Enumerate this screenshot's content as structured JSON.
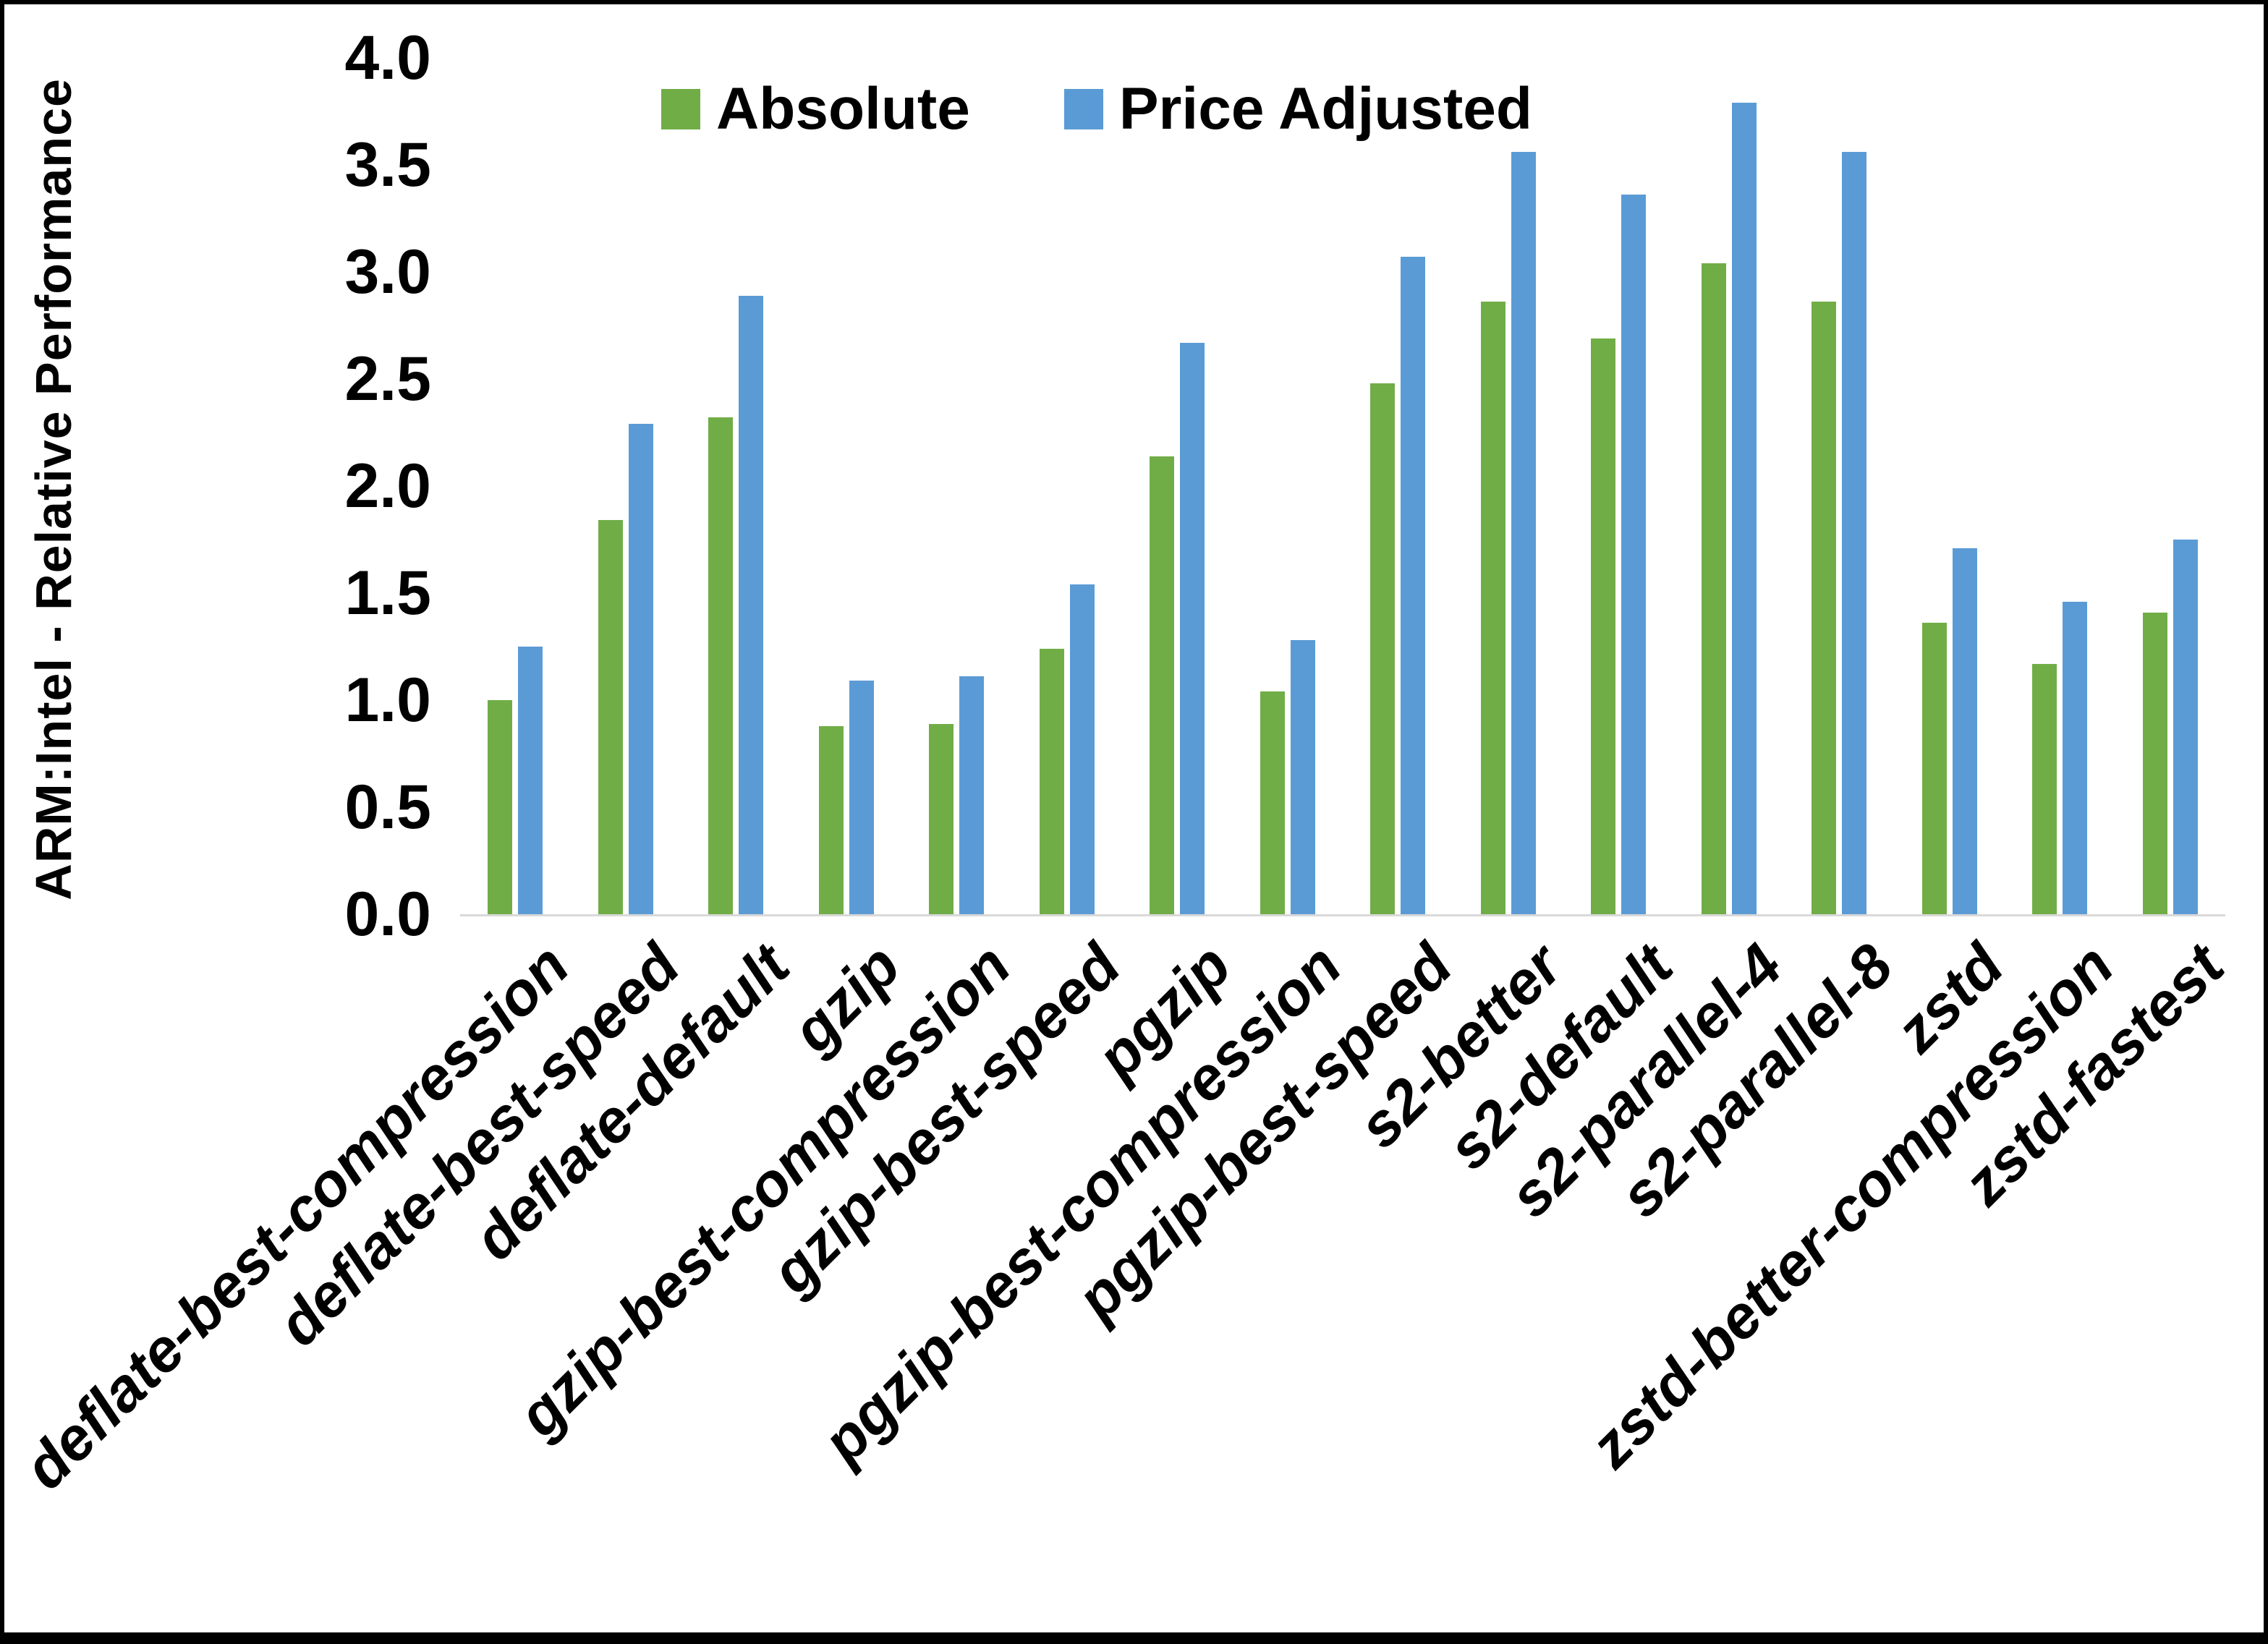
{
  "chart_data": {
    "type": "bar",
    "title": "",
    "xlabel": "",
    "ylabel": "ARM:Intel - Relative Performance",
    "ylim": [
      0.0,
      4.0
    ],
    "ytick_step": 0.5,
    "ytick_labels": [
      "0.0",
      "0.5",
      "1.0",
      "1.5",
      "2.0",
      "2.5",
      "3.0",
      "3.5",
      "4.0"
    ],
    "grid": false,
    "legend_position": "top-center",
    "categories": [
      "deflate-best-compression",
      "deflate-best-speed",
      "deflate-default",
      "gzip",
      "gzip-best-compression",
      "gzip-best-speed",
      "pgzip",
      "pgzip-best-compression",
      "pgzip-best-speed",
      "s2-better",
      "s2-default",
      "s2-parallel-4",
      "s2-parallel-8",
      "zstd",
      "zstd-better-compression",
      "zstd-fastest"
    ],
    "series": [
      {
        "name": "Absolute",
        "color": "#70AD47",
        "values": [
          1.0,
          1.84,
          2.32,
          0.88,
          0.89,
          1.24,
          2.14,
          1.04,
          2.48,
          2.86,
          2.69,
          3.04,
          2.86,
          1.36,
          1.17,
          1.41
        ]
      },
      {
        "name": "Price Adjusted",
        "color": "#5B9BD5",
        "values": [
          1.25,
          2.29,
          2.89,
          1.09,
          1.11,
          1.54,
          2.67,
          1.28,
          3.07,
          3.56,
          3.36,
          3.79,
          3.56,
          1.71,
          1.46,
          1.75
        ]
      }
    ]
  },
  "colors": {
    "absolute_green": "#70AD47",
    "price_adjusted_blue": "#5B9BD5",
    "axis_line": "#D9D9D9",
    "text": "#000000",
    "background": "#FFFFFF",
    "border": "#000000"
  }
}
